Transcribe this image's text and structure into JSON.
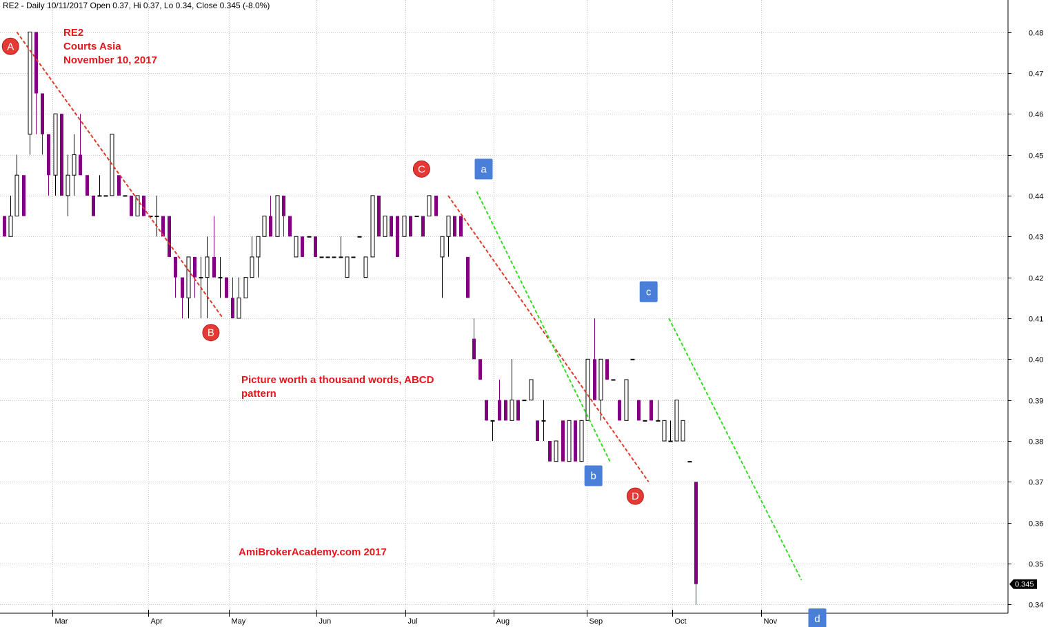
{
  "header": "RE2 - Daily 10/11/2017 Open 0.37, Hi 0.37, Lo 0.34, Close 0.345 (-8.0%)",
  "annotations": {
    "title_lines": [
      "RE2",
      "Courts Asia",
      "November 10, 2017"
    ],
    "caption_lines": [
      "Picture worth a thousand words, ABCD",
      "pattern"
    ],
    "watermark": "AmiBrokerAcademy.com  2017"
  },
  "last_price_label": "0.345",
  "colors": {
    "bear": "#800080",
    "bull": "#000000",
    "red_trend": "#e03a2a",
    "green_trend": "#33dd22",
    "red_marker": "#e53935",
    "blue_marker": "#4a7fd9",
    "grid": "#c8c8c8",
    "text_red": "#e8141c"
  },
  "chart_data": {
    "type": "candlestick",
    "ylim": [
      0.335,
      0.485
    ],
    "y_ticks": [
      0.34,
      0.35,
      0.36,
      0.37,
      0.38,
      0.39,
      0.4,
      0.41,
      0.42,
      0.43,
      0.44,
      0.45,
      0.46,
      0.47,
      0.48
    ],
    "x_ticks": [
      "Mar",
      "Apr",
      "May",
      "Jun",
      "Jul",
      "Aug",
      "Sep",
      "Oct",
      "Nov"
    ],
    "last_close": 0.345,
    "candles": [
      [
        0.435,
        0.435,
        0.43,
        0.43
      ],
      [
        0.43,
        0.44,
        0.43,
        0.435
      ],
      [
        0.435,
        0.45,
        0.435,
        0.445
      ],
      [
        0.445,
        0.445,
        0.435,
        0.435
      ],
      [
        0.455,
        0.48,
        0.45,
        0.48
      ],
      [
        0.48,
        0.48,
        0.455,
        0.465
      ],
      [
        0.465,
        0.465,
        0.45,
        0.455
      ],
      [
        0.455,
        0.455,
        0.44,
        0.445
      ],
      [
        0.445,
        0.46,
        0.44,
        0.46
      ],
      [
        0.46,
        0.46,
        0.44,
        0.44
      ],
      [
        0.44,
        0.45,
        0.435,
        0.445
      ],
      [
        0.445,
        0.455,
        0.44,
        0.45
      ],
      [
        0.45,
        0.46,
        0.445,
        0.445
      ],
      [
        0.445,
        0.445,
        0.44,
        0.44
      ],
      [
        0.44,
        0.44,
        0.435,
        0.435
      ],
      [
        0.44,
        0.445,
        0.44,
        0.44
      ],
      [
        0.44,
        0.44,
        0.44,
        0.44
      ],
      [
        0.44,
        0.455,
        0.44,
        0.455
      ],
      [
        0.445,
        0.445,
        0.44,
        0.44
      ],
      [
        0.44,
        0.44,
        0.44,
        0.44
      ],
      [
        0.44,
        0.44,
        0.435,
        0.435
      ],
      [
        0.435,
        0.44,
        0.435,
        0.44
      ],
      [
        0.44,
        0.44,
        0.435,
        0.435
      ],
      [
        0.435,
        0.435,
        0.435,
        0.435
      ],
      [
        0.435,
        0.44,
        0.43,
        0.435
      ],
      [
        0.435,
        0.435,
        0.43,
        0.43
      ],
      [
        0.435,
        0.435,
        0.425,
        0.425
      ],
      [
        0.425,
        0.425,
        0.415,
        0.42
      ],
      [
        0.42,
        0.42,
        0.41,
        0.415
      ],
      [
        0.415,
        0.425,
        0.41,
        0.425
      ],
      [
        0.425,
        0.425,
        0.415,
        0.42
      ],
      [
        0.42,
        0.425,
        0.41,
        0.42
      ],
      [
        0.42,
        0.43,
        0.41,
        0.425
      ],
      [
        0.425,
        0.435,
        0.42,
        0.42
      ],
      [
        0.42,
        0.425,
        0.415,
        0.42
      ],
      [
        0.42,
        0.42,
        0.415,
        0.415
      ],
      [
        0.415,
        0.42,
        0.41,
        0.41
      ],
      [
        0.41,
        0.42,
        0.41,
        0.415
      ],
      [
        0.415,
        0.42,
        0.415,
        0.42
      ],
      [
        0.42,
        0.43,
        0.42,
        0.425
      ],
      [
        0.425,
        0.43,
        0.42,
        0.43
      ],
      [
        0.43,
        0.435,
        0.43,
        0.435
      ],
      [
        0.435,
        0.44,
        0.43,
        0.43
      ],
      [
        0.43,
        0.44,
        0.43,
        0.44
      ],
      [
        0.44,
        0.44,
        0.43,
        0.435
      ],
      [
        0.435,
        0.435,
        0.43,
        0.43
      ],
      [
        0.425,
        0.43,
        0.425,
        0.43
      ],
      [
        0.43,
        0.43,
        0.425,
        0.425
      ],
      [
        0.43,
        0.43,
        0.43,
        0.43
      ],
      [
        0.43,
        0.43,
        0.425,
        0.425
      ],
      [
        0.425,
        0.425,
        0.425,
        0.425
      ],
      [
        0.425,
        0.425,
        0.425,
        0.425
      ],
      [
        0.425,
        0.425,
        0.425,
        0.425
      ],
      [
        0.425,
        0.43,
        0.425,
        0.425
      ],
      [
        0.42,
        0.425,
        0.42,
        0.425
      ],
      [
        0.425,
        0.425,
        0.425,
        0.425
      ],
      [
        0.43,
        0.43,
        0.43,
        0.43
      ],
      [
        0.42,
        0.425,
        0.42,
        0.425
      ],
      [
        0.425,
        0.44,
        0.425,
        0.44
      ],
      [
        0.44,
        0.44,
        0.43,
        0.43
      ],
      [
        0.43,
        0.435,
        0.43,
        0.435
      ],
      [
        0.435,
        0.435,
        0.43,
        0.43
      ],
      [
        0.435,
        0.435,
        0.425,
        0.425
      ],
      [
        0.43,
        0.435,
        0.43,
        0.435
      ],
      [
        0.435,
        0.435,
        0.43,
        0.43
      ],
      [
        0.435,
        0.435,
        0.435,
        0.435
      ],
      [
        0.435,
        0.435,
        0.43,
        0.43
      ],
      [
        0.435,
        0.44,
        0.435,
        0.44
      ],
      [
        0.44,
        0.44,
        0.435,
        0.435
      ],
      [
        0.425,
        0.43,
        0.415,
        0.43
      ],
      [
        0.43,
        0.435,
        0.425,
        0.435
      ],
      [
        0.435,
        0.435,
        0.43,
        0.43
      ],
      [
        0.435,
        0.435,
        0.43,
        0.43
      ],
      [
        0.425,
        0.425,
        0.415,
        0.415
      ],
      [
        0.405,
        0.41,
        0.4,
        0.4
      ],
      [
        0.4,
        0.4,
        0.395,
        0.395
      ],
      [
        0.39,
        0.39,
        0.385,
        0.385
      ],
      [
        0.385,
        0.385,
        0.38,
        0.385
      ],
      [
        0.39,
        0.395,
        0.385,
        0.385
      ],
      [
        0.39,
        0.39,
        0.385,
        0.385
      ],
      [
        0.385,
        0.4,
        0.385,
        0.39
      ],
      [
        0.39,
        0.39,
        0.385,
        0.385
      ],
      [
        0.39,
        0.39,
        0.39,
        0.39
      ],
      [
        0.39,
        0.395,
        0.39,
        0.395
      ],
      [
        0.385,
        0.385,
        0.38,
        0.38
      ],
      [
        0.385,
        0.39,
        0.38,
        0.385
      ],
      [
        0.38,
        0.38,
        0.375,
        0.375
      ],
      [
        0.375,
        0.38,
        0.375,
        0.38
      ],
      [
        0.385,
        0.385,
        0.375,
        0.375
      ],
      [
        0.375,
        0.385,
        0.375,
        0.385
      ],
      [
        0.385,
        0.385,
        0.375,
        0.375
      ],
      [
        0.375,
        0.385,
        0.375,
        0.385
      ],
      [
        0.385,
        0.4,
        0.385,
        0.4
      ],
      [
        0.4,
        0.41,
        0.39,
        0.39
      ],
      [
        0.39,
        0.4,
        0.385,
        0.4
      ],
      [
        0.4,
        0.4,
        0.395,
        0.395
      ],
      [
        0.395,
        0.395,
        0.395,
        0.395
      ],
      [
        0.39,
        0.39,
        0.385,
        0.385
      ],
      [
        0.385,
        0.395,
        0.385,
        0.395
      ],
      [
        0.4,
        0.4,
        0.4,
        0.4
      ],
      [
        0.39,
        0.39,
        0.385,
        0.385
      ],
      [
        0.385,
        0.385,
        0.385,
        0.385
      ],
      [
        0.39,
        0.39,
        0.385,
        0.385
      ],
      [
        0.385,
        0.39,
        0.385,
        0.385
      ],
      [
        0.38,
        0.385,
        0.38,
        0.385
      ],
      [
        0.38,
        0.385,
        0.38,
        0.38
      ],
      [
        0.38,
        0.39,
        0.38,
        0.39
      ],
      [
        0.38,
        0.385,
        0.38,
        0.385
      ],
      [
        0.375,
        0.375,
        0.375,
        0.375
      ],
      [
        0.37,
        0.37,
        0.34,
        0.345
      ]
    ]
  },
  "markers": [
    {
      "label": "A",
      "style": "red-circle",
      "bar": 1.0,
      "price": 0.4765
    },
    {
      "label": "B",
      "style": "red-circle",
      "bar": 32.6,
      "price": 0.4065
    },
    {
      "label": "C",
      "style": "red-circle",
      "bar": 65.8,
      "price": 0.4465
    },
    {
      "label": "D",
      "style": "red-circle",
      "bar": 99.5,
      "price": 0.3665
    },
    {
      "label": "a",
      "style": "blue-square",
      "bar": 75.6,
      "price": 0.4465
    },
    {
      "label": "b",
      "style": "blue-square",
      "bar": 92.9,
      "price": 0.3715
    },
    {
      "label": "c",
      "style": "blue-square",
      "bar": 101.6,
      "price": 0.4165
    },
    {
      "label": "d",
      "style": "blue-square",
      "bar": 128.2,
      "price": 0.3365
    }
  ],
  "trendlines": [
    {
      "color": "red",
      "from": {
        "bar": 2.0,
        "price": 0.48
      },
      "to": {
        "bar": 34.5,
        "price": 0.41
      }
    },
    {
      "color": "red",
      "from": {
        "bar": 70.0,
        "price": 0.44
      },
      "to": {
        "bar": 101.6,
        "price": 0.37
      }
    },
    {
      "color": "green",
      "from": {
        "bar": 74.5,
        "price": 0.441
      },
      "to": {
        "bar": 95.5,
        "price": 0.375
      }
    },
    {
      "color": "green",
      "from": {
        "bar": 104.8,
        "price": 0.41
      },
      "to": {
        "bar": 125.7,
        "price": 0.346
      }
    }
  ]
}
